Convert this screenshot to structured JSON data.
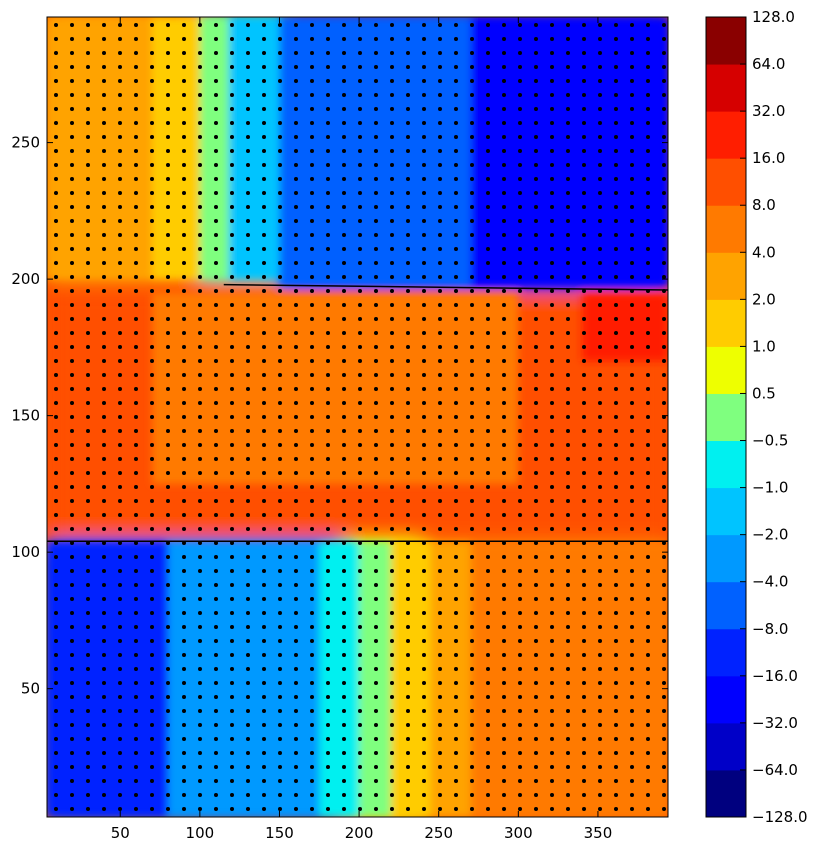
{
  "chart_data": {
    "type": "heatmap",
    "subtype": "filled-contour",
    "title": "",
    "xlabel": "",
    "ylabel": "",
    "xlim": [
      4,
      394
    ],
    "ylim": [
      3,
      296
    ],
    "x_ticks": [
      50,
      100,
      150,
      200,
      250,
      300,
      350
    ],
    "y_ticks": [
      50,
      100,
      150,
      200,
      250
    ],
    "grid": false,
    "legend": "colorbar-right",
    "colormap": "jet",
    "colorbar_levels": [
      "−128.0",
      "−64.0",
      "−32.0",
      "−16.0",
      "−8.0",
      "−4.0",
      "−2.0",
      "−1.0",
      "−0.5",
      "0.5",
      "1.0",
      "2.0",
      "4.0",
      "8.0",
      "16.0",
      "32.0",
      "64.0",
      "128.0"
    ],
    "colorbar_colors": [
      "#00007f",
      "#0000c8",
      "#0000ff",
      "#0022ff",
      "#0061ff",
      "#0099ff",
      "#00c4ff",
      "#00f0f0",
      "#7fff7f",
      "#eeff00",
      "#ffcc00",
      "#ffa300",
      "#ff7a00",
      "#ff4f00",
      "#ff1e00",
      "#d60000",
      "#8a0000"
    ],
    "regions": [
      {
        "name": "upper-left",
        "x": [
          4,
          115
        ],
        "y": [
          200,
          296
        ],
        "value_range": [
          "1.0",
          "4.0"
        ]
      },
      {
        "name": "upper-middle",
        "x": [
          100,
          150
        ],
        "y": [
          200,
          296
        ],
        "value_range": [
          "−2.0",
          "0.5"
        ]
      },
      {
        "name": "upper-right",
        "x": [
          150,
          394
        ],
        "y": [
          197,
          296
        ],
        "value_range": [
          "−64.0",
          "−4.0"
        ]
      },
      {
        "name": "middle-band",
        "x": [
          4,
          394
        ],
        "y": [
          104,
          197
        ],
        "value_range": [
          "4.0",
          "32.0"
        ]
      },
      {
        "name": "lower-left",
        "x": [
          4,
          200
        ],
        "y": [
          3,
          104
        ],
        "value_range": [
          "−32.0",
          "−1.0"
        ]
      },
      {
        "name": "lower-middle",
        "x": [
          190,
          270
        ],
        "y": [
          3,
          104
        ],
        "value_range": [
          "−1.0",
          "2.0"
        ]
      },
      {
        "name": "lower-right",
        "x": [
          240,
          394
        ],
        "y": [
          3,
          104
        ],
        "value_range": [
          "2.0",
          "8.0"
        ]
      }
    ],
    "discontinuities": [
      {
        "from": [
          4,
          104
        ],
        "to": [
          394,
          104
        ]
      },
      {
        "from": [
          115,
          198
        ],
        "to": [
          394,
          196
        ]
      }
    ],
    "stipple": {
      "dx": 10,
      "dy": 10
    }
  }
}
